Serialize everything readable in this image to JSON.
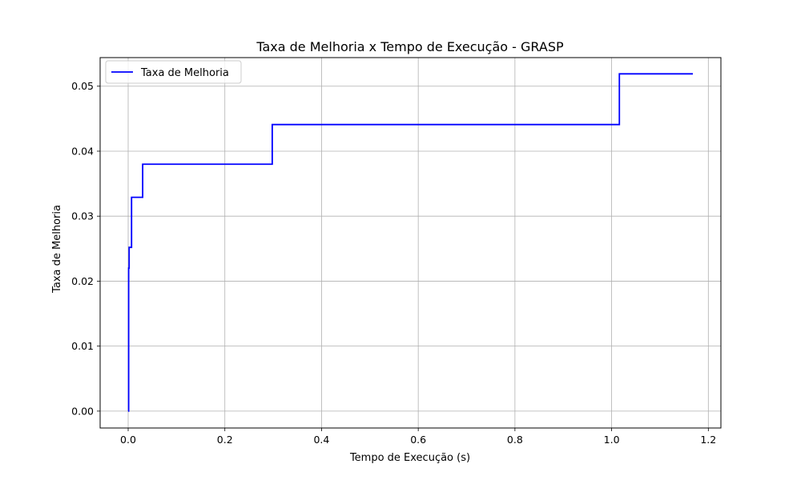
{
  "chart_data": {
    "type": "line",
    "title": "Taxa de Melhoria x Tempo de Execução - GRASP",
    "xlabel": "Tempo de Execução (s)",
    "ylabel": "Taxa de Melhoria",
    "xlim": [
      -0.058,
      1.226
    ],
    "ylim": [
      -0.0026,
      0.0544
    ],
    "x_ticks": [
      0.0,
      0.2,
      0.4,
      0.6,
      0.8,
      1.0,
      1.2
    ],
    "x_tick_labels": [
      "0.0",
      "0.2",
      "0.4",
      "0.6",
      "0.8",
      "1.0",
      "1.2"
    ],
    "y_ticks": [
      0.0,
      0.01,
      0.02,
      0.03,
      0.04,
      0.05
    ],
    "y_tick_labels": [
      "0.00",
      "0.01",
      "0.02",
      "0.03",
      "0.04",
      "0.05"
    ],
    "grid": true,
    "legend_position": "top-left",
    "series": [
      {
        "name": "Taxa de Melhoria",
        "color": "#0000ff",
        "step": true,
        "x": [
          0.0,
          0.001,
          0.002,
          0.007,
          0.03,
          0.298,
          1.016,
          1.168
        ],
        "y": [
          0.0,
          0.022,
          0.0252,
          0.0329,
          0.038,
          0.0441,
          0.0519,
          0.0519
        ]
      }
    ]
  }
}
